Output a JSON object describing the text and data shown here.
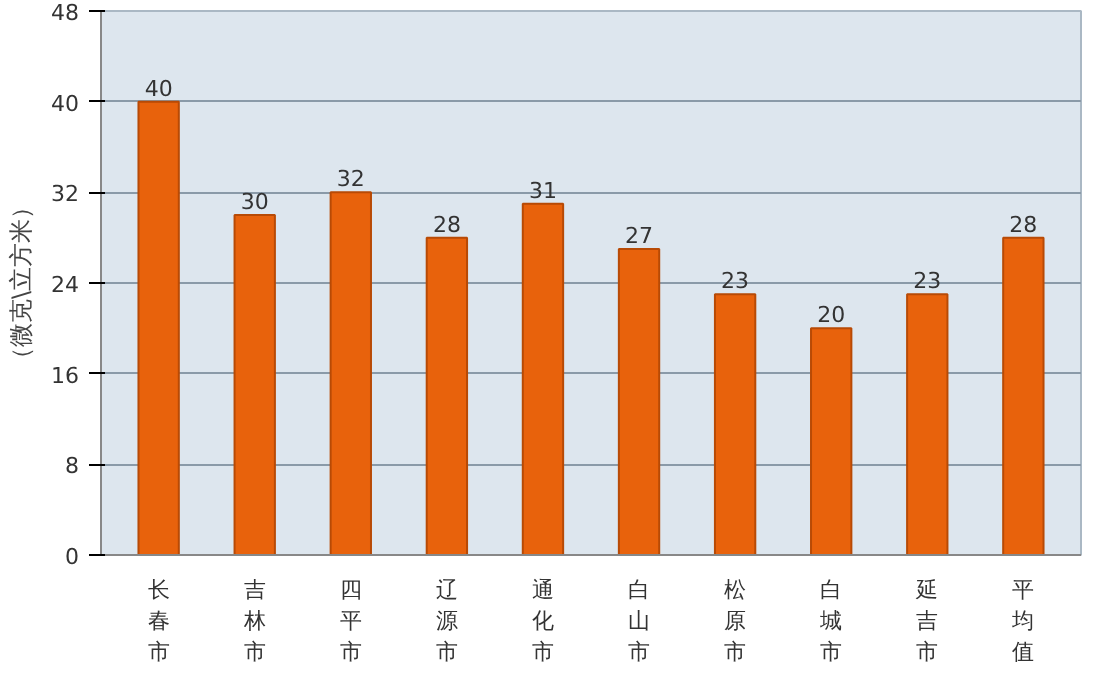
{
  "chart_data": {
    "type": "bar",
    "ylabel": "（微克\\立方米）",
    "categories": [
      "长春市",
      "吉林市",
      "四平市",
      "辽源市",
      "通化市",
      "白山市",
      "松原市",
      "白城市",
      "延吉市",
      "平均值"
    ],
    "values": [
      40,
      30,
      32,
      28,
      31,
      27,
      23,
      20,
      23,
      28
    ],
    "color": "#e8620c",
    "ylim": [
      0,
      48
    ],
    "yticks": [
      0,
      8,
      16,
      24,
      32,
      40,
      48
    ],
    "grid": "y",
    "data_labels": true
  }
}
